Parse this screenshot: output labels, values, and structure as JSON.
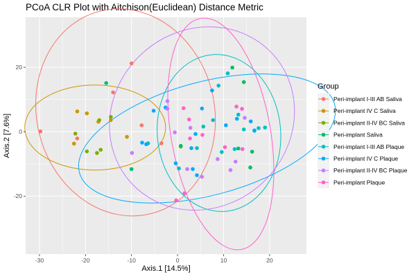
{
  "chart_data": {
    "type": "scatter",
    "title": "PCoA CLR Plot with Aitchison(Euclidean) Distance Metric",
    "xlabel": "Axis.1   [14.5%]",
    "ylabel": "Axis.2   [7.6%]",
    "xlim": [
      -33,
      28
    ],
    "ylim": [
      -38,
      35.5
    ],
    "xticks": [
      -30,
      -20,
      -10,
      0,
      10,
      20
    ],
    "yticks": [
      -20,
      0,
      20
    ],
    "grid": true,
    "legend_position": "right",
    "legend_title": "Group",
    "series": [
      {
        "name": "Peri-implant I-III AB Saliva",
        "color": "#F8766D",
        "points": [
          [
            -29.8,
            0.1
          ],
          [
            -21.8,
            -2.1
          ],
          [
            -14,
            12.2
          ],
          [
            -10,
            21.2
          ],
          [
            -7.8,
            2
          ],
          [
            -3.5,
            -3.6
          ]
        ],
        "ellipse": {
          "cx": -11.3,
          "cy": 6,
          "rx": 19.3,
          "ry": 32.4,
          "angle": -14
        }
      },
      {
        "name": "Peri-implant IV C Saliva",
        "color": "#CD9600",
        "points": [
          [
            -22.5,
            -3.7
          ],
          [
            -21.8,
            6.3
          ],
          [
            -19.7,
            5.7
          ],
          [
            -17.2,
            3.1
          ],
          [
            -14.5,
            3.6
          ],
          [
            -11,
            -1.6
          ]
        ],
        "ellipse": {
          "cx": -17.9,
          "cy": 1.3,
          "rx": 15.3,
          "ry": 13.2,
          "angle": 0
        }
      },
      {
        "name": "Peri-implant II-IV BC Saliva",
        "color": "#7CAE00",
        "points": [
          [
            -22.2,
            -0.6
          ],
          [
            -19.7,
            -6.1
          ],
          [
            -17.5,
            -6.6
          ],
          [
            -16.7,
            -5.6
          ],
          [
            -17,
            3.6
          ],
          [
            -14.5,
            4.6
          ],
          [
            0.7,
            -4.6
          ]
        ],
        "ellipse": null
      },
      {
        "name": "Peri-implant Saliva",
        "color": "#00BE67",
        "points": [
          [
            -15.5,
            15.1
          ],
          [
            -10,
            -11.6
          ],
          [
            0.7,
            -4.4
          ],
          [
            11.9,
            19.9
          ],
          [
            14.4,
            15.4
          ],
          [
            13.2,
            -5.2
          ],
          [
            16.2,
            -6.2
          ],
          [
            15.8,
            -11.1
          ]
        ],
        "ellipse": null
      },
      {
        "name": "Peri-implant I-III AB Plaque",
        "color": "#00BFC4",
        "points": [
          [
            -6.4,
            -3.6
          ],
          [
            0.3,
            -11.4
          ],
          [
            4.2,
            -5.1
          ],
          [
            5.6,
            1.6
          ],
          [
            7.7,
            3.6
          ],
          [
            8.9,
            14.3
          ],
          [
            9.6,
            -6.3
          ],
          [
            10.9,
            18.1
          ],
          [
            12.4,
            -5.4
          ],
          [
            13.2,
            5.3
          ],
          [
            14.4,
            0.7
          ],
          [
            16.7,
            0.3
          ],
          [
            17.6,
            1.1
          ],
          [
            19,
            1.3
          ]
        ],
        "ellipse": {
          "cx": 9,
          "cy": -0.4,
          "rx": 13.4,
          "ry": 24.4,
          "angle": -5
        }
      },
      {
        "name": "Peri-implant IV C Plaque",
        "color": "#00A9FF",
        "points": [
          [
            -7.7,
            -3.4
          ],
          [
            -6.8,
            -3.9
          ],
          [
            -5.2,
            6.5
          ],
          [
            -2.6,
            7.5
          ],
          [
            -0.4,
            -9.8
          ],
          [
            3,
            -5.1
          ],
          [
            3.3,
            -11.6
          ],
          [
            3.9,
            -0.7
          ],
          [
            4.2,
            -13.5
          ],
          [
            5.3,
            7.2
          ],
          [
            7.5,
            12.8
          ],
          [
            10.5,
            2
          ],
          [
            12.9,
            4
          ],
          [
            15.9,
            3.2
          ],
          [
            16.7,
            0.4
          ]
        ],
        "ellipse": {
          "cx": 6.4,
          "cy": -2.1,
          "rx": 28.7,
          "ry": 17.6,
          "angle": -15
        }
      },
      {
        "name": "Peri-implant II-IV BC Plaque",
        "color": "#C77CFF",
        "points": [
          [
            -9.9,
            -6.6
          ],
          [
            -2.2,
            9.5
          ],
          [
            -2.2,
            7.1
          ],
          [
            -0.6,
            -0.2
          ],
          [
            2.1,
            -11.6
          ],
          [
            2.8,
            1.2
          ],
          [
            5.3,
            -14
          ],
          [
            8.7,
            -8.5
          ],
          [
            11.5,
            -11.9
          ],
          [
            12.6,
            -9.3
          ],
          [
            14.6,
            4.3
          ]
        ],
        "ellipse": {
          "cx": 5.3,
          "cy": 4.1,
          "rx": 20.8,
          "ry": 27.4,
          "angle": -42
        }
      },
      {
        "name": "Peri-implant Plaque",
        "color": "#FF61CC",
        "points": [
          [
            -0.3,
            -21.3
          ],
          [
            1.5,
            -19.1
          ],
          [
            1.3,
            7.3
          ],
          [
            2.5,
            3.8
          ],
          [
            2.7,
            -2.1
          ],
          [
            5.4,
            -1
          ],
          [
            10.3,
            -4.8
          ],
          [
            12.8,
            7.8
          ],
          [
            14,
            7.1
          ],
          [
            14.1,
            -5.4
          ]
        ],
        "ellipse": {
          "cx": 9.4,
          "cy": -0.7,
          "rx": 10.8,
          "ry": 36.4,
          "angle": -10
        }
      }
    ]
  }
}
